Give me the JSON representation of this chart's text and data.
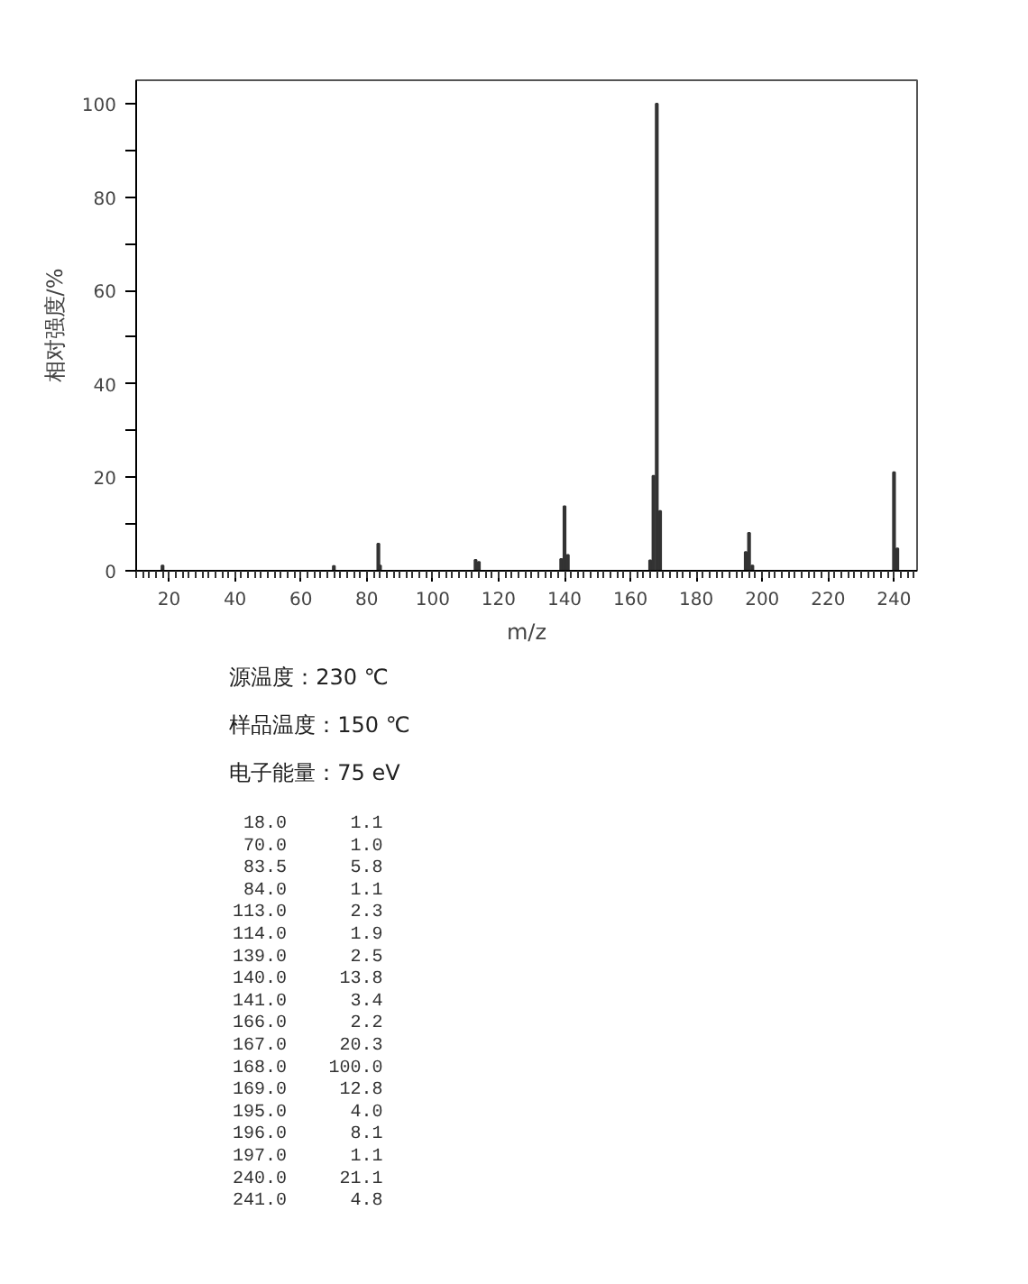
{
  "chart_data": {
    "type": "bar",
    "xlabel": "m/z",
    "ylabel": "相对强度/%",
    "x": [
      18.0,
      70.0,
      83.5,
      84.0,
      113.0,
      114.0,
      139.0,
      140.0,
      141.0,
      166.0,
      167.0,
      168.0,
      169.0,
      195.0,
      196.0,
      197.0,
      240.0,
      241.0
    ],
    "values": [
      1.1,
      1.0,
      5.8,
      1.1,
      2.3,
      1.9,
      2.5,
      13.8,
      3.4,
      2.2,
      20.3,
      100.0,
      12.8,
      4.0,
      8.1,
      1.1,
      21.1,
      4.8
    ],
    "color": "#333333",
    "xlim": [
      10,
      247
    ],
    "ylim": [
      0,
      105
    ],
    "xticks": [
      20,
      40,
      60,
      80,
      100,
      120,
      140,
      160,
      180,
      200,
      220,
      240
    ],
    "yticks": [
      0,
      {
        "value": 10,
        "label": null
      },
      20,
      {
        "value": 30,
        "label": null
      },
      40,
      {
        "value": 50,
        "label": null
      },
      60,
      {
        "value": 70,
        "label": null
      },
      80,
      {
        "value": 90,
        "label": null
      },
      100
    ],
    "grid": false,
    "annotations": [
      "源温度：230 ℃",
      "样品温度：150 ℃",
      "电子能量：75 eV",
      "18.0",
      "1.1",
      "70.0",
      "1.0",
      "83.5",
      "5.8",
      "84.0",
      "1.1",
      "113.0",
      "2.3",
      "114.0",
      "1.9",
      "139.0",
      "2.5",
      "140.0",
      "13.8",
      "141.0",
      "3.4",
      "166.0",
      "2.2",
      "167.0",
      "20.3",
      "168.0",
      "100.0",
      "169.0",
      "12.8",
      "195.0",
      "4.0",
      "196.0",
      "8.1",
      "197.0",
      "1.1",
      "240.0",
      "21.1",
      "241.0",
      "4.8"
    ]
  }
}
